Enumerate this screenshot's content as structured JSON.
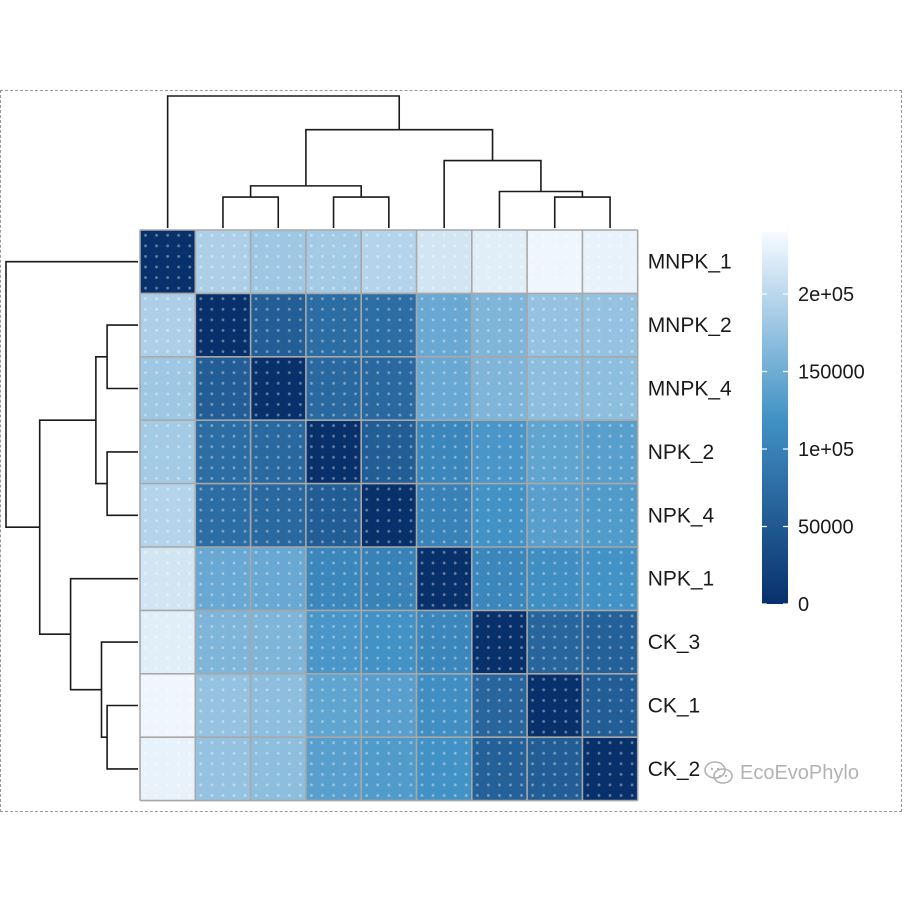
{
  "chart_data": {
    "type": "heatmap",
    "title": "",
    "labels": [
      "MNPK_1",
      "MNPK_2",
      "MNPK_4",
      "NPK_2",
      "NPK_4",
      "NPK_1",
      "CK_3",
      "CK_1",
      "CK_2"
    ],
    "values": [
      [
        0,
        190000,
        180000,
        185000,
        195000,
        215000,
        225000,
        235000,
        230000
      ],
      [
        190000,
        0,
        55000,
        75000,
        75000,
        145000,
        160000,
        175000,
        175000
      ],
      [
        180000,
        55000,
        0,
        70000,
        70000,
        145000,
        160000,
        170000,
        170000
      ],
      [
        185000,
        75000,
        70000,
        0,
        55000,
        105000,
        125000,
        140000,
        135000
      ],
      [
        195000,
        75000,
        70000,
        55000,
        0,
        100000,
        120000,
        135000,
        130000
      ],
      [
        215000,
        145000,
        145000,
        105000,
        100000,
        0,
        105000,
        115000,
        120000
      ],
      [
        225000,
        160000,
        160000,
        125000,
        120000,
        105000,
        0,
        65000,
        60000
      ],
      [
        235000,
        175000,
        170000,
        140000,
        135000,
        115000,
        65000,
        0,
        55000
      ],
      [
        230000,
        175000,
        170000,
        135000,
        130000,
        120000,
        60000,
        55000,
        0
      ]
    ],
    "scale_range": [
      0,
      240000
    ],
    "colors": {
      "low": "#08306b",
      "mid": "#4292c6",
      "high": "#f7fbff"
    },
    "legend": {
      "position": "right",
      "ticks": [
        {
          "value": 0,
          "label": "0"
        },
        {
          "value": 50000,
          "label": "50000"
        },
        {
          "value": 100000,
          "label": "1e+05"
        },
        {
          "value": 150000,
          "label": "150000"
        },
        {
          "value": 200000,
          "label": "2e+05"
        }
      ]
    },
    "dendrogram": "complete-linkage hierarchical clustering shown on top and left"
  },
  "watermark": {
    "text": "EcoEvoPhylo",
    "icon": "wechat-icon"
  }
}
